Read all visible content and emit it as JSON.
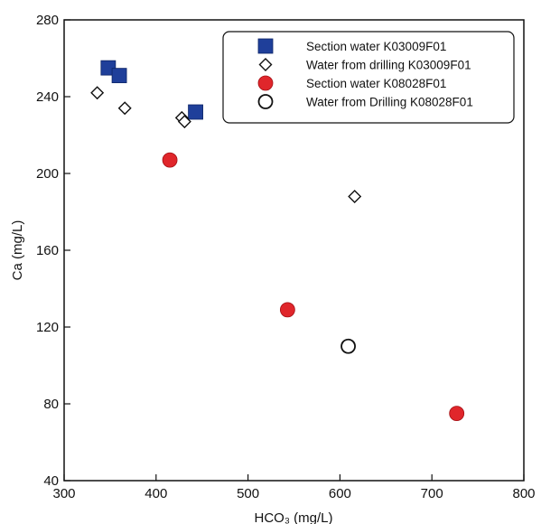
{
  "chart_data": {
    "type": "scatter",
    "xlabel": "HCO₃ (mg/L)",
    "ylabel": "Ca (mg/L)",
    "xlim": [
      300,
      800
    ],
    "ylim": [
      40,
      280
    ],
    "x_ticks": [
      300,
      400,
      500,
      600,
      700,
      800
    ],
    "x_tick_labels": [
      "300",
      "400",
      "500",
      "600",
      "700",
      "800"
    ],
    "y_ticks": [
      40,
      80,
      120,
      160,
      200,
      240,
      280
    ],
    "y_tick_labels": [
      "40",
      "80",
      "120",
      "160",
      "200",
      "240",
      "280"
    ],
    "grid": false,
    "legend_position": "top-right",
    "series": [
      {
        "name": "Section water K03009F01",
        "marker": "filled-square",
        "color": "#1f3f9a",
        "points": [
          {
            "x": 348,
            "y": 255
          },
          {
            "x": 360,
            "y": 251
          },
          {
            "x": 443,
            "y": 232
          }
        ]
      },
      {
        "name": "Water from drilling K03009F01",
        "marker": "open-diamond",
        "color": "#111111",
        "points": [
          {
            "x": 336,
            "y": 242
          },
          {
            "x": 366,
            "y": 234
          },
          {
            "x": 428,
            "y": 229
          },
          {
            "x": 431,
            "y": 227
          },
          {
            "x": 616,
            "y": 188
          }
        ]
      },
      {
        "name": "Section water K08028F01",
        "marker": "filled-circle",
        "color": "#e0262b",
        "points": [
          {
            "x": 415,
            "y": 207
          },
          {
            "x": 543,
            "y": 129
          },
          {
            "x": 727,
            "y": 75
          }
        ]
      },
      {
        "name": "Water from Drilling K08028F01",
        "marker": "open-circle",
        "color": "#111111",
        "points": [
          {
            "x": 609,
            "y": 110
          }
        ]
      }
    ]
  }
}
